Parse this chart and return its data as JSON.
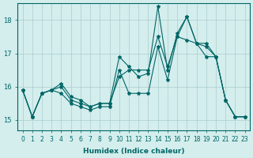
{
  "title": "",
  "xlabel": "Humidex (Indice chaleur)",
  "ylabel": "",
  "bg_color": "#d4eeed",
  "line_color": "#006666",
  "grid_color": "#aacccc",
  "ylim": [
    14.7,
    18.5
  ],
  "xlim": [
    -0.5,
    23.5
  ],
  "yticks": [
    15,
    16,
    17,
    18
  ],
  "xticks": [
    0,
    1,
    2,
    3,
    4,
    5,
    6,
    7,
    8,
    9,
    10,
    11,
    12,
    13,
    14,
    15,
    16,
    17,
    18,
    19,
    20,
    21,
    22,
    23
  ],
  "series": [
    [
      15.9,
      15.1,
      15.8,
      15.9,
      16.1,
      15.7,
      15.6,
      15.4,
      15.5,
      15.5,
      16.9,
      16.6,
      16.3,
      16.4,
      18.4,
      16.5,
      17.6,
      18.1,
      17.3,
      16.9,
      16.9,
      15.6,
      15.1,
      15.1
    ],
    [
      15.9,
      15.1,
      15.8,
      15.9,
      15.8,
      15.5,
      15.4,
      15.3,
      15.4,
      15.4,
      16.5,
      15.8,
      15.8,
      15.8,
      17.2,
      16.2,
      17.5,
      18.1,
      17.3,
      17.3,
      16.9,
      15.6,
      15.1,
      15.1
    ],
    [
      15.9,
      15.1,
      15.8,
      15.9,
      16.0,
      15.6,
      15.5,
      15.4,
      15.5,
      15.5,
      16.3,
      16.5,
      16.5,
      16.5,
      17.5,
      16.6,
      17.5,
      17.4,
      17.3,
      17.2,
      16.9,
      15.6,
      15.1,
      15.1
    ]
  ]
}
